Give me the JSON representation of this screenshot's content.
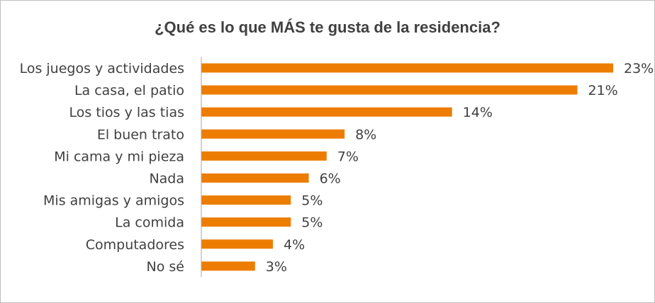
{
  "chart_data": {
    "type": "bar",
    "orientation": "horizontal",
    "title": "¿Qué es lo que MÁS te gusta de la residencia?",
    "categories": [
      "Los juegos y actividades",
      "La casa, el patio",
      "Los tios y las tias",
      "El buen trato",
      "Mi cama y mi pieza",
      "Nada",
      "Mis amigas y amigos",
      "La comida",
      "Computadores",
      "No sé"
    ],
    "values": [
      23,
      21,
      14,
      8,
      7,
      6,
      5,
      5,
      4,
      3
    ],
    "value_labels": [
      "23%",
      "21%",
      "14%",
      "8%",
      "7%",
      "6%",
      "5%",
      "5%",
      "4%",
      "3%"
    ],
    "xlabel": "",
    "ylabel": "",
    "bar_color": "#ED7D00",
    "grid": false,
    "legend": "none"
  }
}
